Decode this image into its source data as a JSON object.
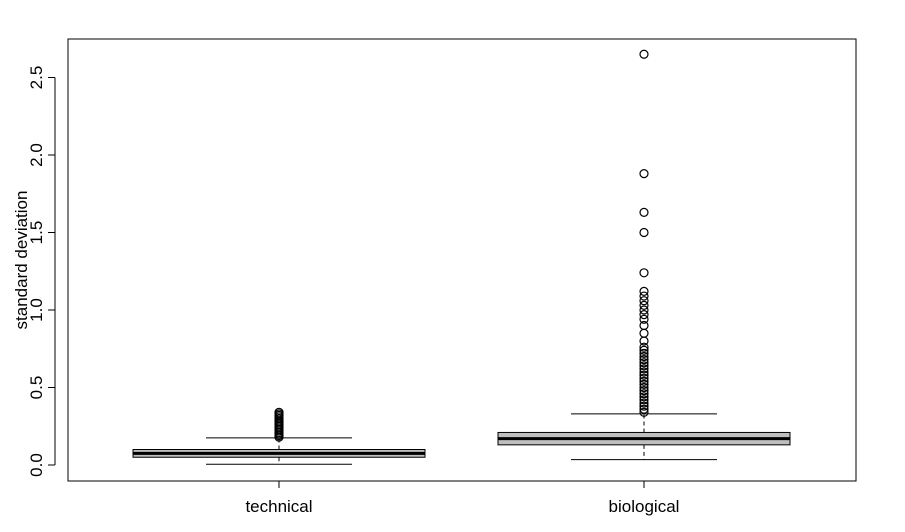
{
  "chart_data": {
    "type": "box",
    "ylabel": "standard deviation",
    "xlabel": "",
    "title": "",
    "ylim": [
      -0.1,
      2.75
    ],
    "yticks": [
      "0.0",
      "0.5",
      "1.0",
      "1.5",
      "2.0",
      "2.5"
    ],
    "categories": [
      "technical",
      "biological"
    ],
    "grid": false,
    "colors": {
      "box_fill": "#bebebe",
      "stroke": "#000000",
      "background": "#ffffff"
    },
    "boxes": [
      {
        "name": "technical",
        "whisker_low": 0.005,
        "q1": 0.05,
        "median": 0.075,
        "q3": 0.1,
        "whisker_high": 0.175,
        "outliers": [
          0.18,
          0.19,
          0.2,
          0.21,
          0.22,
          0.23,
          0.24,
          0.25,
          0.26,
          0.27,
          0.28,
          0.29,
          0.3,
          0.31,
          0.32,
          0.33,
          0.34
        ]
      },
      {
        "name": "biological",
        "whisker_low": 0.035,
        "q1": 0.13,
        "median": 0.17,
        "q3": 0.21,
        "whisker_high": 0.33,
        "outliers": [
          0.34,
          0.36,
          0.38,
          0.4,
          0.42,
          0.44,
          0.46,
          0.48,
          0.5,
          0.52,
          0.54,
          0.56,
          0.58,
          0.6,
          0.62,
          0.64,
          0.66,
          0.68,
          0.7,
          0.72,
          0.74,
          0.76,
          0.8,
          0.85,
          0.9,
          0.94,
          0.97,
          1.0,
          1.03,
          1.06,
          1.09,
          1.12,
          1.24,
          1.5,
          1.63,
          1.88,
          2.65
        ]
      }
    ]
  }
}
